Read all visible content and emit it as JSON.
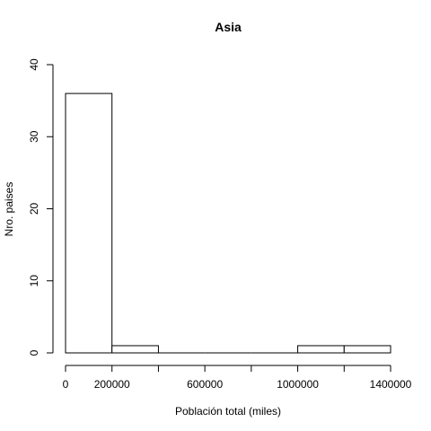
{
  "chart_data": {
    "type": "histogram",
    "title": "Asia",
    "xlabel": "Población total (miles)",
    "ylabel": "Nro. paises",
    "bins": [
      {
        "from": 0,
        "to": 200000,
        "count": 36
      },
      {
        "from": 200000,
        "to": 400000,
        "count": 1
      },
      {
        "from": 400000,
        "to": 600000,
        "count": 0
      },
      {
        "from": 600000,
        "to": 800000,
        "count": 0
      },
      {
        "from": 800000,
        "to": 1000000,
        "count": 0
      },
      {
        "from": 1000000,
        "to": 1200000,
        "count": 1
      },
      {
        "from": 1200000,
        "to": 1400000,
        "count": 1
      }
    ],
    "xlim": [
      0,
      1400000
    ],
    "ylim": [
      0,
      40
    ],
    "x_ticks": [
      0,
      200000,
      400000,
      600000,
      800000,
      1000000,
      1200000,
      1400000
    ],
    "x_tick_labels": [
      "0",
      "200000",
      "",
      "600000",
      "",
      "1000000",
      "",
      "1400000"
    ],
    "y_ticks": [
      0,
      10,
      20,
      30,
      40
    ],
    "y_tick_labels": [
      "0",
      "10",
      "20",
      "30",
      "40"
    ],
    "grid": false,
    "bar_fill": "#ffffff",
    "bar_stroke": "#000000"
  }
}
